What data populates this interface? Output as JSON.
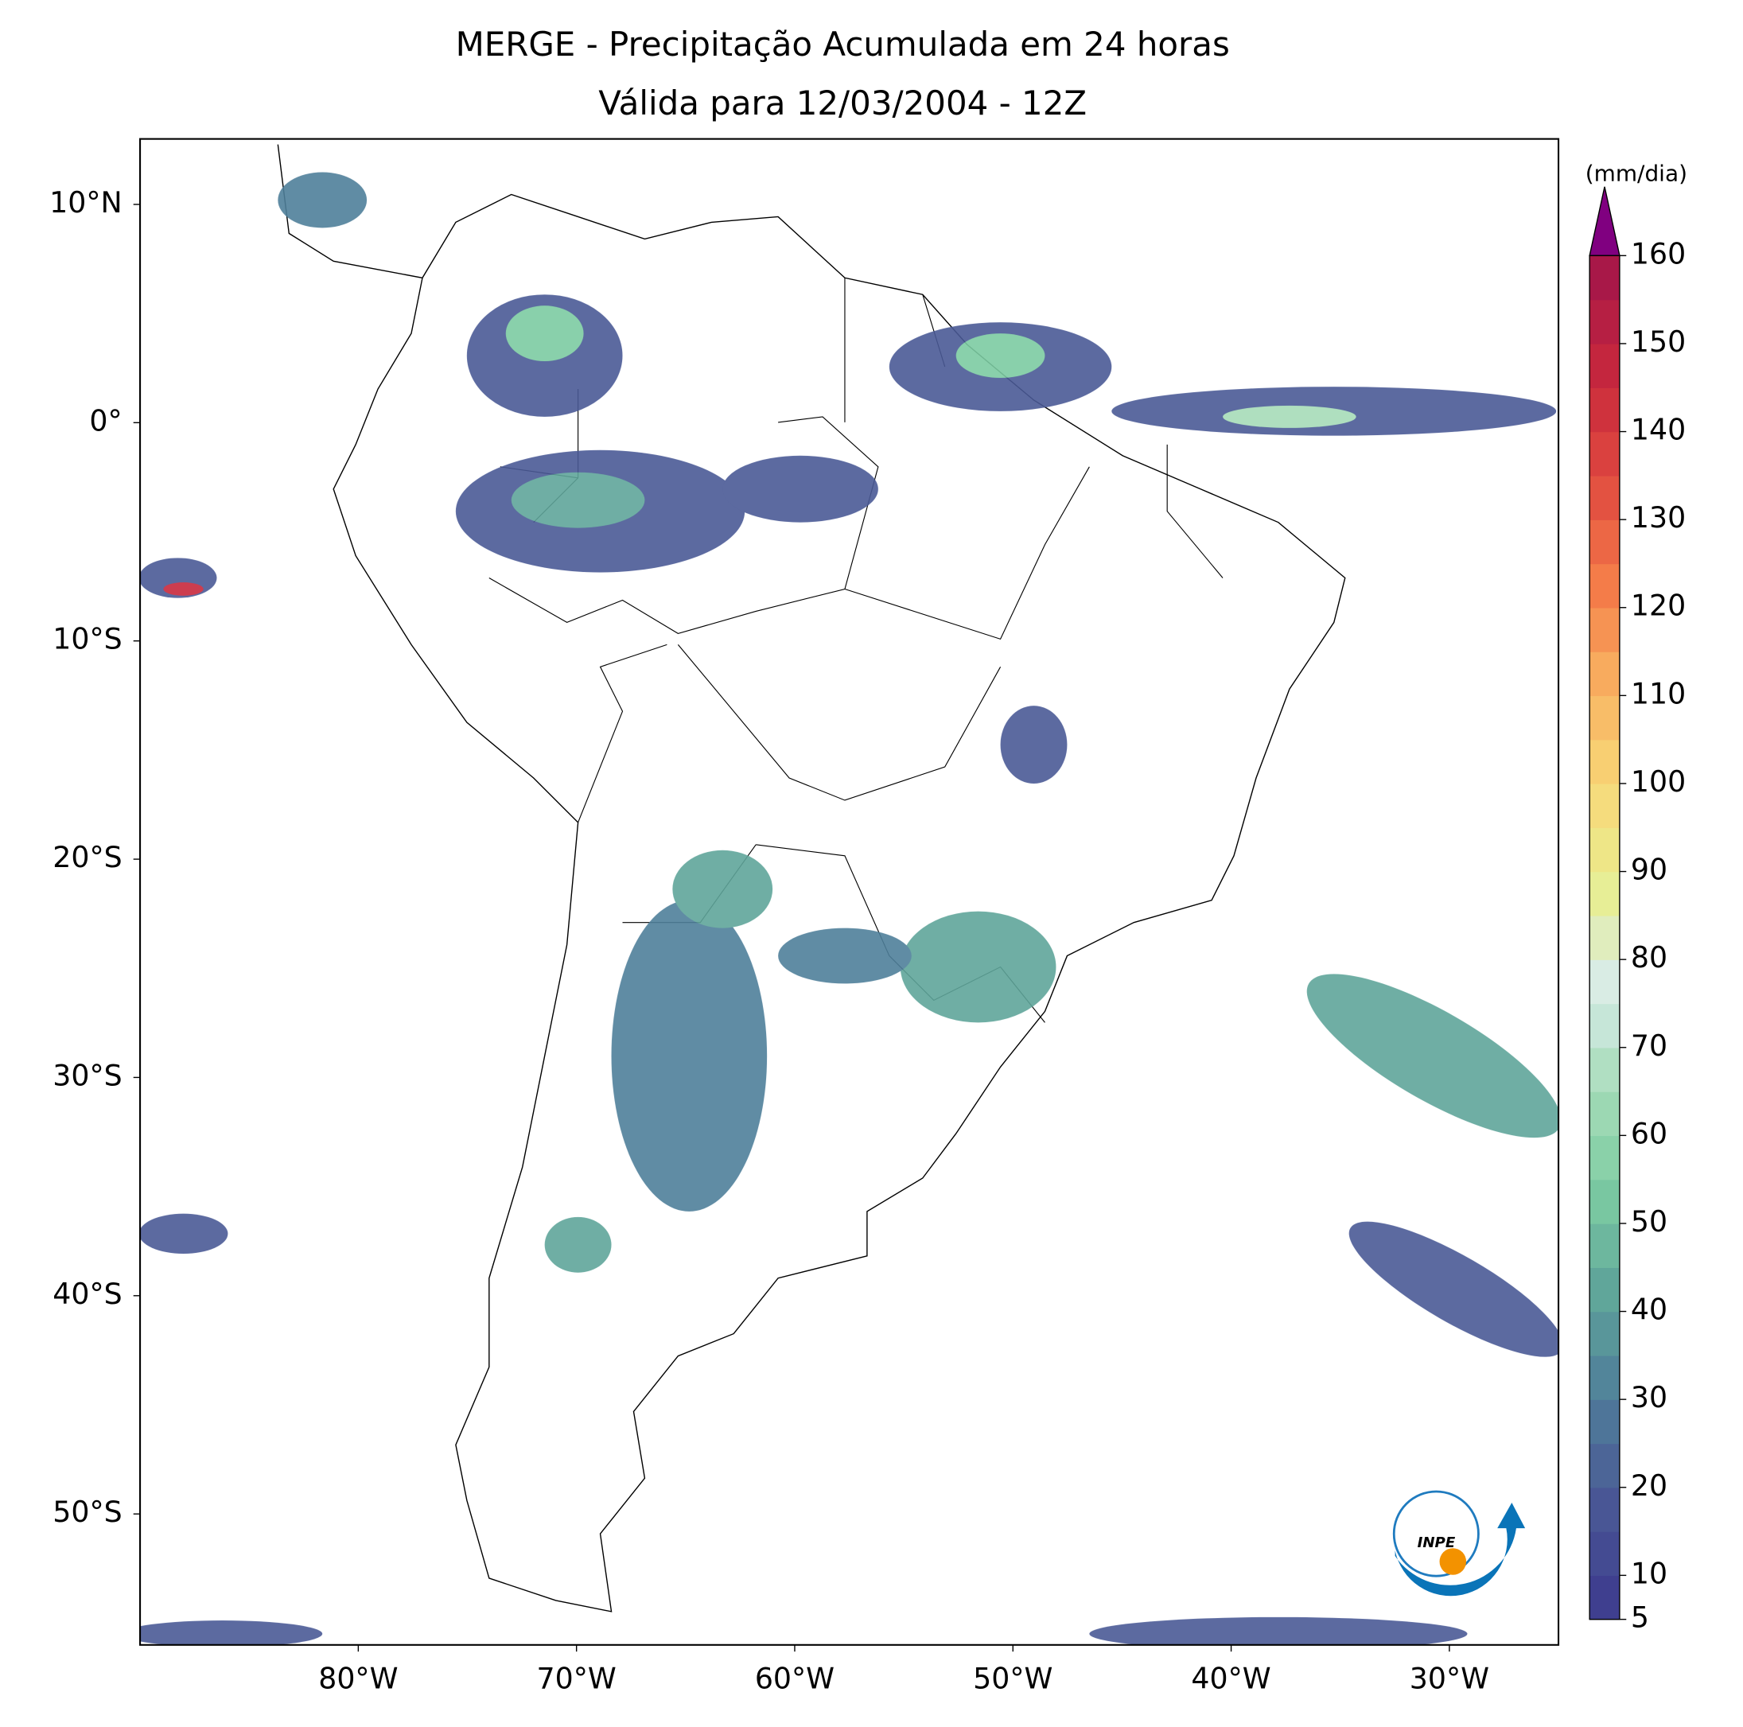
{
  "title": [
    "MERGE - Precipitação Acumulada em 24 horas",
    "Válida para 12/03/2004 - 12Z"
  ],
  "map": {
    "xlim": [
      -90,
      -25
    ],
    "ylim": [
      -56,
      13
    ],
    "xticks": [
      {
        "value": -80,
        "label": "80°W"
      },
      {
        "value": -70,
        "label": "70°W"
      },
      {
        "value": -60,
        "label": "60°W"
      },
      {
        "value": -50,
        "label": "50°W"
      },
      {
        "value": -40,
        "label": "40°W"
      },
      {
        "value": -30,
        "label": "30°W"
      }
    ],
    "yticks": [
      {
        "value": 10,
        "label": "10°N"
      },
      {
        "value": 0,
        "label": "0°"
      },
      {
        "value": -10,
        "label": "10°S"
      },
      {
        "value": -20,
        "label": "20°S"
      },
      {
        "value": -30,
        "label": "30°S"
      },
      {
        "value": -40,
        "label": "40°S"
      },
      {
        "value": -50,
        "label": "50°S"
      }
    ]
  },
  "colorbar": {
    "unit": "(mm/dia)",
    "lim": [
      5,
      160
    ],
    "ticks": [
      5,
      10,
      20,
      30,
      40,
      50,
      60,
      70,
      80,
      90,
      100,
      110,
      120,
      130,
      140,
      150,
      160
    ],
    "colors": [
      "#3f3f8f",
      "#4a5a96",
      "#4f7f9a",
      "#5fa59a",
      "#7ccba2",
      "#a6dcb8",
      "#d8ecea",
      "#e8ee90",
      "#f8d878",
      "#f8b060",
      "#f47a48",
      "#e04a40",
      "#c8283c",
      "#a81848"
    ],
    "extend_color": "#800080"
  },
  "logo": "INPE"
}
